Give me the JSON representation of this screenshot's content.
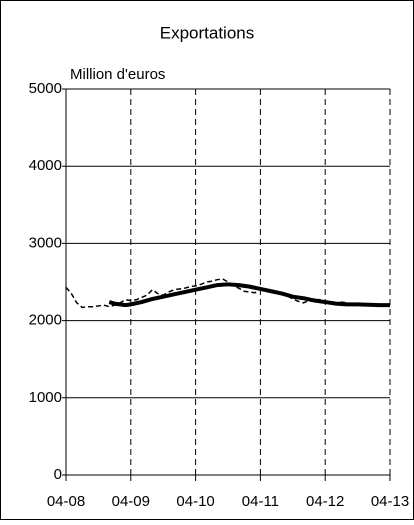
{
  "chart_data": {
    "type": "line",
    "title": "Exportations",
    "y_label": "Million d'euros",
    "xlim": [
      0,
      60
    ],
    "xticks": [
      {
        "value": 0,
        "label": "04-08"
      },
      {
        "value": 12,
        "label": "04-09"
      },
      {
        "value": 24,
        "label": "04-10"
      },
      {
        "value": 36,
        "label": "04-11"
      },
      {
        "value": 48,
        "label": "04-12"
      },
      {
        "value": 60,
        "label": "04-13"
      }
    ],
    "ylim": [
      0,
      5000
    ],
    "yticks": [
      0,
      1000,
      2000,
      3000,
      4000,
      5000
    ],
    "grid": true,
    "series": [
      {
        "style": "dashed",
        "color": "#000000",
        "x": [
          0,
          1,
          2,
          3,
          4,
          5,
          6,
          7,
          8,
          9,
          10,
          11,
          12,
          13,
          14,
          15,
          16,
          17,
          18,
          19,
          20,
          21,
          22,
          23,
          24,
          25,
          26,
          27,
          28,
          29,
          30,
          31,
          32,
          33,
          34,
          35,
          36,
          37,
          38,
          39,
          40,
          41,
          42,
          43,
          44,
          45,
          46,
          47,
          48,
          49,
          50,
          51,
          52,
          53,
          54,
          55,
          56,
          57,
          58,
          59,
          60
        ],
        "values": [
          2430,
          2350,
          2230,
          2170,
          2180,
          2180,
          2190,
          2200,
          2180,
          2200,
          2230,
          2270,
          2260,
          2270,
          2300,
          2330,
          2400,
          2350,
          2330,
          2370,
          2400,
          2410,
          2420,
          2440,
          2450,
          2470,
          2500,
          2510,
          2530,
          2540,
          2500,
          2450,
          2420,
          2380,
          2370,
          2360,
          2420,
          2400,
          2370,
          2380,
          2360,
          2320,
          2280,
          2250,
          2230,
          2260,
          2280,
          2270,
          2230,
          2220,
          2220,
          2240,
          2230,
          2220,
          2220,
          2210,
          2220,
          2210,
          2200,
          2210,
          2200
        ]
      },
      {
        "style": "solid",
        "color": "#000000",
        "x": [
          8,
          9,
          10,
          11,
          12,
          14,
          16,
          18,
          20,
          22,
          24,
          26,
          28,
          30,
          32,
          34,
          36,
          38,
          40,
          42,
          44,
          46,
          48,
          50,
          52,
          54,
          56,
          58,
          60
        ],
        "values": [
          2240,
          2220,
          2210,
          2200,
          2210,
          2240,
          2280,
          2310,
          2340,
          2370,
          2400,
          2430,
          2460,
          2470,
          2460,
          2440,
          2410,
          2380,
          2350,
          2310,
          2290,
          2260,
          2240,
          2220,
          2210,
          2210,
          2205,
          2200,
          2200
        ]
      }
    ]
  }
}
